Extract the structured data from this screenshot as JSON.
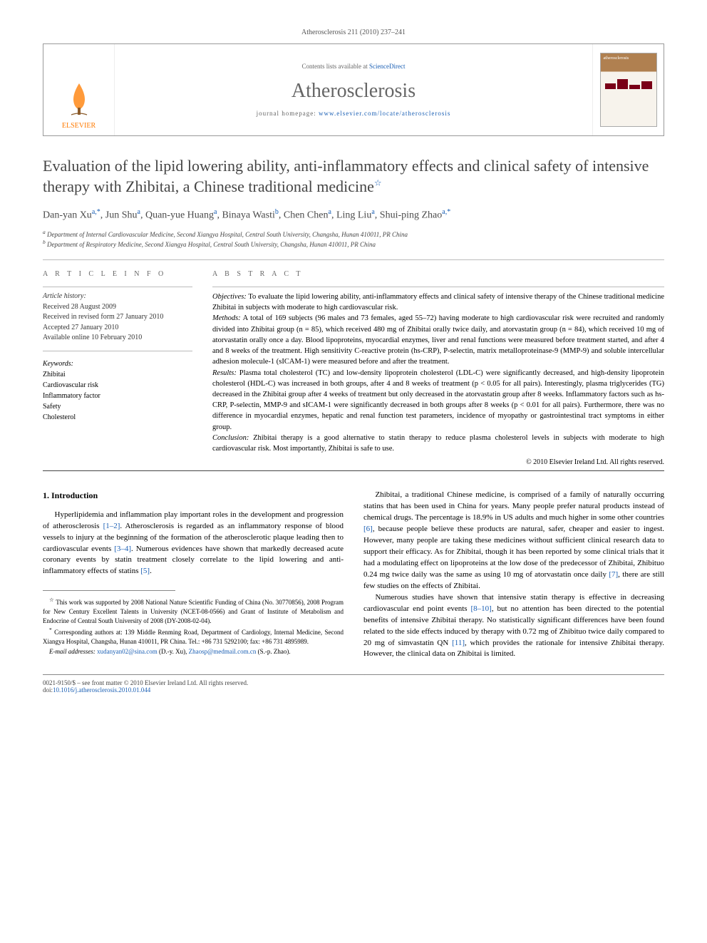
{
  "running_head": "Atherosclerosis 211 (2010) 237–241",
  "header": {
    "contents_prefix": "Contents lists available at ",
    "contents_link": "ScienceDirect",
    "journal": "Atherosclerosis",
    "homepage_prefix": "journal homepage: ",
    "homepage_url": "www.elsevier.com/locate/atherosclerosis",
    "publisher_logo": "ELSEVIER",
    "cover_journal": "atherosclerosis"
  },
  "title": "Evaluation of the lipid lowering ability, anti-inflammatory effects and clinical safety of intensive therapy with Zhibitai, a Chinese traditional medicine",
  "title_note_marker": "☆",
  "authors_html": "Dan-yan Xu|a,*|, Jun Shu|a|, Quan-yue Huang|a|, Binaya Wasti|b|, Chen Chen|a|, Ling Liu|a|, Shui-ping Zhao|a,*|",
  "affiliations": [
    {
      "marker": "a",
      "text": "Department of Internal Cardiovascular Medicine, Second Xiangya Hospital, Central South University, Changsha, Hunan 410011, PR China"
    },
    {
      "marker": "b",
      "text": "Department of Respiratory Medicine, Second Xiangya Hospital, Central South University, Changsha, Hunan 410011, PR China"
    }
  ],
  "section_labels": {
    "article_info": "A R T I C L E   I N F O",
    "abstract": "A B S T R A C T"
  },
  "article_history": {
    "label": "Article history:",
    "lines": [
      "Received 28 August 2009",
      "Received in revised form 27 January 2010",
      "Accepted 27 January 2010",
      "Available online 10 February 2010"
    ]
  },
  "keywords": {
    "label": "Keywords:",
    "items": [
      "Zhibitai",
      "Cardiovascular risk",
      "Inflammatory factor",
      "Safety",
      "Cholesterol"
    ]
  },
  "abstract": {
    "objectives_label": "Objectives:",
    "objectives": "To evaluate the lipid lowering ability, anti-inflammatory effects and clinical safety of intensive therapy of the Chinese traditional medicine Zhibitai in subjects with moderate to high cardiovascular risk.",
    "methods_label": "Methods:",
    "methods": "A total of 169 subjects (96 males and 73 females, aged 55–72) having moderate to high cardiovascular risk were recruited and randomly divided into Zhibitai group (n = 85), which received 480 mg of Zhibitai orally twice daily, and atorvastatin group (n = 84), which received 10 mg of atorvastatin orally once a day. Blood lipoproteins, myocardial enzymes, liver and renal functions were measured before treatment started, and after 4 and 8 weeks of the treatment. High sensitivity C-reactive protein (hs-CRP), P-selectin, matrix metalloproteinase-9 (MMP-9) and soluble intercellular adhesion molecule-1 (sICAM-1) were measured before and after the treatment.",
    "results_label": "Results:",
    "results": "Plasma total cholesterol (TC) and low-density lipoprotein cholesterol (LDL-C) were significantly decreased, and high-density lipoprotein cholesterol (HDL-C) was increased in both groups, after 4 and 8 weeks of treatment (p < 0.05 for all pairs). Interestingly, plasma triglycerides (TG) decreased in the Zhibitai group after 4 weeks of treatment but only decreased in the atorvastatin group after 8 weeks. Inflammatory factors such as hs-CRP, P-selectin, MMP-9 and sICAM-1 were significantly decreased in both groups after 8 weeks (p < 0.01 for all pairs). Furthermore, there was no difference in myocardial enzymes, hepatic and renal function test parameters, incidence of myopathy or gastrointestinal tract symptoms in either group.",
    "conclusion_label": "Conclusion:",
    "conclusion": "Zhibitai therapy is a good alternative to statin therapy to reduce plasma cholesterol levels in subjects with moderate to high cardiovascular risk. Most importantly, Zhibitai is safe to use.",
    "copyright": "© 2010 Elsevier Ireland Ltd. All rights reserved."
  },
  "body": {
    "section1_heading": "1. Introduction",
    "left_para": "Hyperlipidemia and inflammation play important roles in the development and progression of atherosclerosis [1–2]. Atherosclerosis is regarded as an inflammatory response of blood vessels to injury at the beginning of the formation of the atherosclerotic plaque leading then to cardiovascular events [3–4]. Numerous evidences have shown that markedly decreased acute coronary events by statin treatment closely correlate to the lipid lowering and anti-inflammatory effects of statins [5].",
    "right_para1": "Zhibitai, a traditional Chinese medicine, is comprised of a family of naturally occurring statins that has been used in China for years. Many people prefer natural products instead of chemical drugs. The percentage is 18.9% in US adults and much higher in some other countries [6], because people believe these products are natural, safer, cheaper and easier to ingest. However, many people are taking these medicines without sufficient clinical research data to support their efficacy. As for Zhibitai, though it has been reported by some clinical trials that it had a modulating effect on lipoproteins at the low dose of the predecessor of Zhibitai, Zhibituo 0.24 mg twice daily was the same as using 10 mg of atorvastatin once daily [7], there are still few studies on the effects of Zhibitai.",
    "right_para2": "Numerous studies have shown that intensive statin therapy is effective in decreasing cardiovascular end point events [8–10], but no attention has been directed to the potential benefits of intensive Zhibitai therapy. No statistically significant differences have been found related to the side effects induced by therapy with 0.72 mg of Zhibituo twice daily compared to 20 mg of simvastatin QN [11], which provides the rationale for intensive Zhibitai therapy. However, the clinical data on Zhibitai is limited."
  },
  "footnotes": {
    "funding_marker": "☆",
    "funding": "This work was supported by 2008 National Nature Scientific Funding of China (No. 30770856), 2008 Program for New Century Excellent Talents in University (NCET-08-0566) and Grant of Institute of Metabolism and Endocrine of Central South University of 2008 (DY-2008-02-04).",
    "corr_marker": "*",
    "corr": "Corresponding authors at: 139 Middle Renming Road, Department of Cardiology, Internal Medicine, Second Xiangya Hospital, Changsha, Hunan 410011, PR China. Tel.: +86 731 5292100; fax: +86 731 4895989.",
    "email_label": "E-mail addresses:",
    "emails": [
      {
        "addr": "xudanyan02@sina.com",
        "who": "(D.-y. Xu)"
      },
      {
        "addr": "Zhaosp@medmail.com.cn",
        "who": "(S.-p. Zhao)."
      }
    ]
  },
  "bottom": {
    "issn_line": "0021-9150/$ – see front matter © 2010 Elsevier Ireland Ltd. All rights reserved.",
    "doi_label": "doi:",
    "doi": "10.1016/j.atherosclerosis.2010.01.044"
  },
  "colors": {
    "link": "#1a5fb4",
    "elsevier_orange": "#ff7a00",
    "gray_text": "#666"
  }
}
